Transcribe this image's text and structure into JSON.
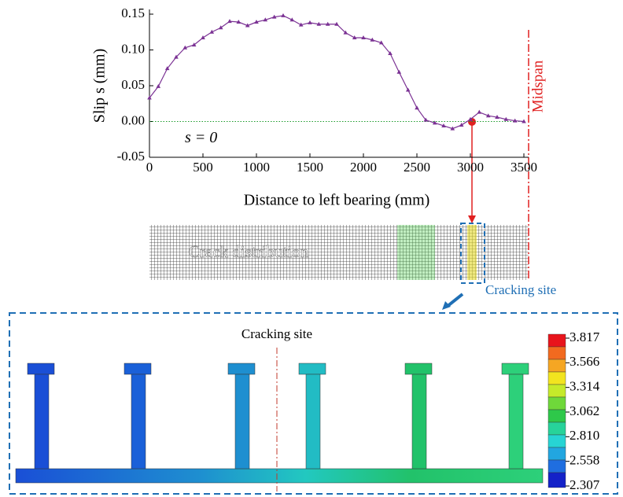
{
  "chart_data": {
    "type": "line",
    "y_label": "Slip s (mm)",
    "x_label": "Distance to left bearing (mm)",
    "annotations": {
      "zero": "s = 0",
      "midspan": "Midspan",
      "crack": "Crack distribution",
      "site": "Cracking site"
    },
    "x": [
      0,
      83,
      167,
      250,
      333,
      417,
      500,
      583,
      667,
      750,
      833,
      917,
      1000,
      1083,
      1167,
      1250,
      1333,
      1417,
      1500,
      1583,
      1667,
      1750,
      1833,
      1917,
      2000,
      2083,
      2167,
      2250,
      2333,
      2417,
      2500,
      2583,
      2667,
      2750,
      2833,
      2917,
      3000,
      3083,
      3167,
      3250,
      3333,
      3417,
      3500
    ],
    "series": [
      {
        "color": "#7b3294",
        "values": [
          0.033,
          0.049,
          0.074,
          0.09,
          0.103,
          0.107,
          0.117,
          0.125,
          0.131,
          0.14,
          0.139,
          0.134,
          0.139,
          0.142,
          0.146,
          0.148,
          0.142,
          0.135,
          0.138,
          0.136,
          0.136,
          0.136,
          0.124,
          0.117,
          0.117,
          0.114,
          0.11,
          0.095,
          0.069,
          0.044,
          0.019,
          0.002,
          -0.002,
          -0.006,
          -0.01,
          -0.005,
          0.003,
          0.013,
          0.008,
          0.006,
          0.003,
          0.001,
          0
        ]
      }
    ],
    "zero_line": 0,
    "xlim": [
      0,
      3500
    ],
    "xticks": [
      0,
      500,
      1000,
      1500,
      2000,
      2500,
      3000,
      3500
    ],
    "ylim": [
      -0.05,
      0.15
    ],
    "yticks": [
      0.15,
      {
        "value": 0.1,
        "label": "0.10"
      },
      0.05,
      {
        "value": 0,
        "label": "0.00"
      },
      -0.05
    ]
  },
  "contour": {
    "title": "Cracking site",
    "legend": [
      "3.817",
      "3.566",
      "3.314",
      "3.062",
      "2.810",
      "2.558",
      "2.307"
    ]
  }
}
